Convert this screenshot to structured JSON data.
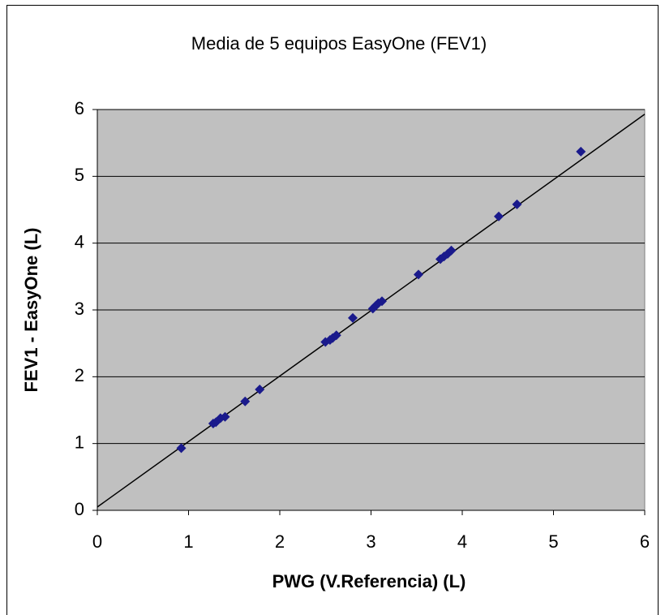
{
  "chart_data": {
    "type": "scatter",
    "title": "Media de 5 equipos EasyOne (FEV1)",
    "xlabel": "PWG (V.Referencia) (L)",
    "ylabel": "FEV1 - EasyOne (L)",
    "series": [
      {
        "name": "FEV1",
        "color": "#1a1a8c",
        "x": [
          0.92,
          1.27,
          1.3,
          1.35,
          1.4,
          1.62,
          1.78,
          2.5,
          2.55,
          2.58,
          2.62,
          2.8,
          3.02,
          3.05,
          3.08,
          3.12,
          3.52,
          3.76,
          3.8,
          3.84,
          3.88,
          4.4,
          4.6,
          5.3
        ],
        "values": [
          0.93,
          1.3,
          1.32,
          1.38,
          1.4,
          1.63,
          1.81,
          2.52,
          2.55,
          2.58,
          2.62,
          2.88,
          3.02,
          3.06,
          3.1,
          3.13,
          3.53,
          3.76,
          3.8,
          3.84,
          3.89,
          4.4,
          4.58,
          5.37
        ]
      }
    ],
    "trendline": {
      "x": [
        0,
        6
      ],
      "values": [
        0.05,
        5.93
      ],
      "color": "#000000"
    },
    "xlim": [
      0,
      6
    ],
    "xticks": [
      0,
      1,
      2,
      3,
      4,
      5,
      6
    ],
    "ylim": [
      0,
      6
    ],
    "yticks": [
      0,
      1,
      2,
      3,
      4,
      5,
      6
    ],
    "grid": true,
    "plot_background": "#c0c0c0"
  }
}
